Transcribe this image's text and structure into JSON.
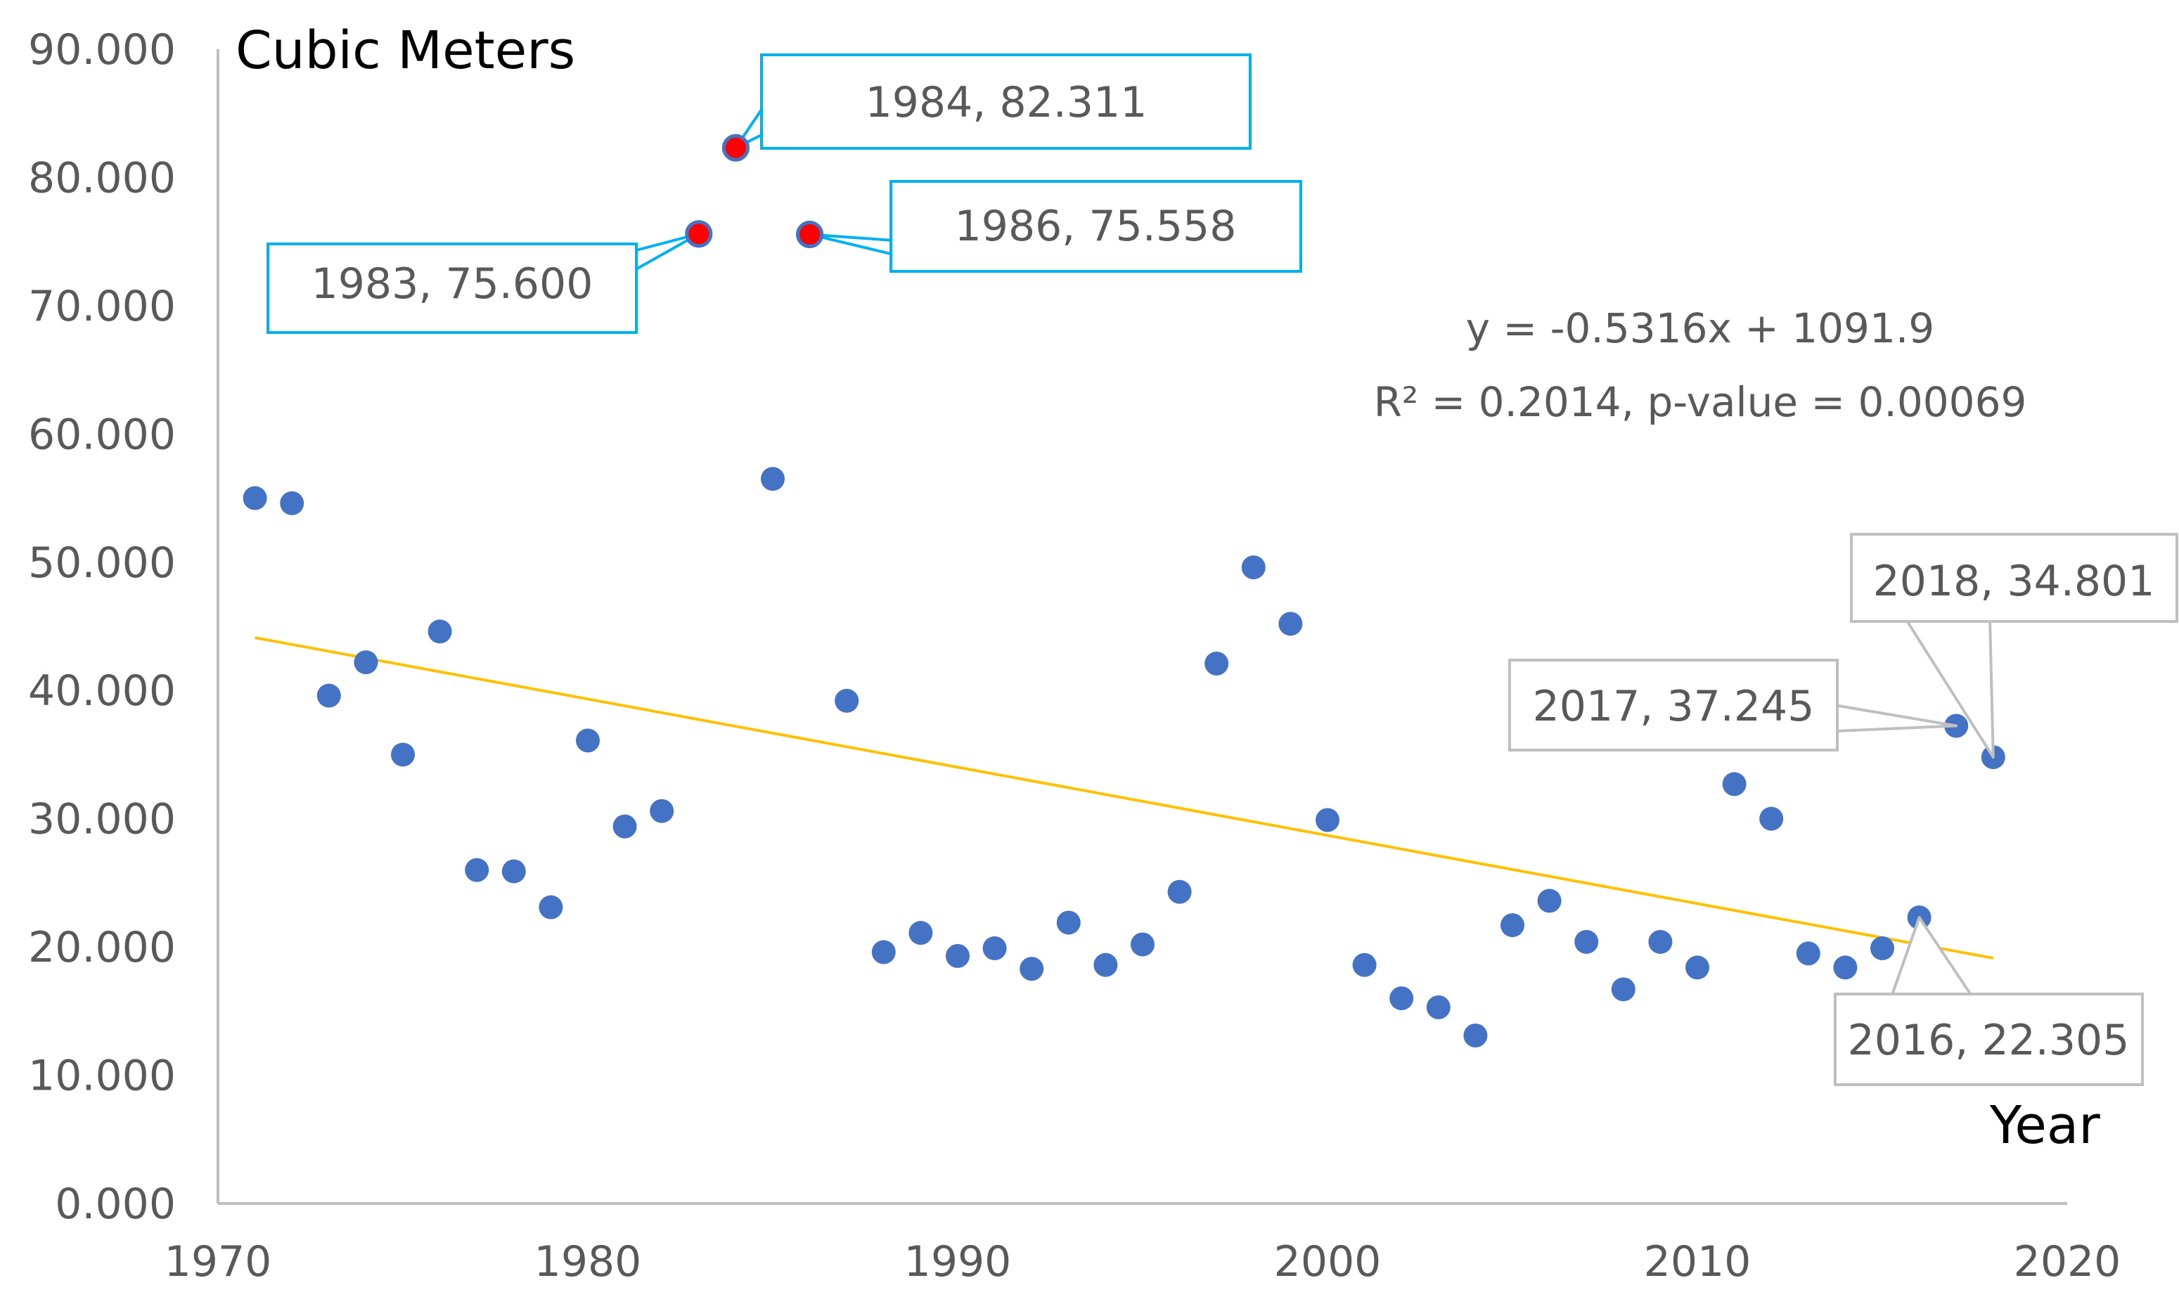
{
  "chart_data": {
    "type": "scatter",
    "title": "",
    "ylabel": "Cubic Meters",
    "xlabel": "Year",
    "xlim": [
      1970,
      2020
    ],
    "ylim": [
      0,
      90
    ],
    "x_ticks": [
      "1970",
      "1980",
      "1990",
      "2000",
      "2010",
      "2020"
    ],
    "y_ticks": [
      "0.000",
      "10.000",
      "20.000",
      "30.000",
      "40.000",
      "50.000",
      "60.000",
      "70.000",
      "80.000",
      "90.000"
    ],
    "grid": false,
    "colors": {
      "point": "#4472C4",
      "highlight": "#FF0000",
      "trend": "#FFC000",
      "axis": "#BFBFBF",
      "callout_blue": "#00B0F0",
      "callout_gray": "#BFBFBF"
    },
    "series": [
      {
        "name": "Cubic Meters",
        "points": [
          [
            1971,
            55.0
          ],
          [
            1972,
            54.6
          ],
          [
            1973,
            39.6
          ],
          [
            1974,
            42.2
          ],
          [
            1975,
            35.0
          ],
          [
            1976,
            44.6
          ],
          [
            1977,
            26.0
          ],
          [
            1978,
            25.9
          ],
          [
            1979,
            23.1
          ],
          [
            1980,
            36.1
          ],
          [
            1981,
            29.4
          ],
          [
            1982,
            30.6
          ],
          [
            1983,
            75.6
          ],
          [
            1984,
            82.311
          ],
          [
            1985,
            56.5
          ],
          [
            1986,
            75.558
          ],
          [
            1987,
            39.2
          ],
          [
            1988,
            19.6
          ],
          [
            1989,
            21.1
          ],
          [
            1990,
            19.3
          ],
          [
            1991,
            19.9
          ],
          [
            1992,
            18.3
          ],
          [
            1993,
            21.9
          ],
          [
            1994,
            18.6
          ],
          [
            1995,
            20.2
          ],
          [
            1996,
            24.3
          ],
          [
            1997,
            42.1
          ],
          [
            1998,
            49.6
          ],
          [
            1999,
            45.2
          ],
          [
            2000,
            29.9
          ],
          [
            2001,
            18.6
          ],
          [
            2002,
            16.0
          ],
          [
            2003,
            15.3
          ],
          [
            2004,
            13.1
          ],
          [
            2005,
            21.7
          ],
          [
            2006,
            23.6
          ],
          [
            2007,
            20.4
          ],
          [
            2008,
            16.7
          ],
          [
            2009,
            20.4
          ],
          [
            2010,
            18.4
          ],
          [
            2011,
            32.7
          ],
          [
            2012,
            30.0
          ],
          [
            2013,
            19.5
          ],
          [
            2014,
            18.4
          ],
          [
            2015,
            19.9
          ],
          [
            2016,
            22.305
          ],
          [
            2017,
            37.245
          ],
          [
            2018,
            34.801
          ]
        ],
        "highlighted_years": [
          1983,
          1984,
          1986
        ]
      }
    ],
    "trendline": {
      "slope": -0.5316,
      "intercept": 1091.9,
      "x_range": [
        1971,
        2018
      ],
      "equation": "y = -0.5316x + 1091.9",
      "stats": "R² = 0.2014, p-value = 0.00069"
    },
    "annotations": [
      {
        "text": "1984, 82.311",
        "year": 1984,
        "value": 82.311,
        "style": "blue"
      },
      {
        "text": "1986, 75.558",
        "year": 1986,
        "value": 75.558,
        "style": "blue"
      },
      {
        "text": "1983, 75.600",
        "year": 1983,
        "value": 75.6,
        "style": "blue"
      },
      {
        "text": "2018, 34.801",
        "year": 2018,
        "value": 34.801,
        "style": "gray"
      },
      {
        "text": "2017, 37.245",
        "year": 2017,
        "value": 37.245,
        "style": "gray"
      },
      {
        "text": "2016, 22.305",
        "year": 2016,
        "value": 22.305,
        "style": "gray"
      }
    ]
  }
}
